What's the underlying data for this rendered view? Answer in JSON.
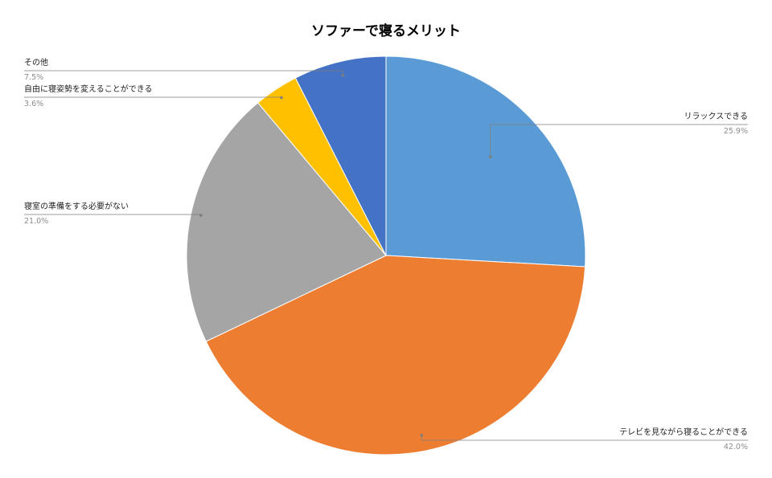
{
  "chart_data": {
    "type": "pie",
    "title": "ソファーで寝るメリット",
    "start_angle_deg": 0,
    "direction": "clockwise",
    "slices": [
      {
        "label": "リラックスできる",
        "value": 25.9,
        "value_label": "25.9%",
        "color": "#5B9BD5"
      },
      {
        "label": "テレビを見ながら寝ることができる",
        "value": 42.0,
        "value_label": "42.0%",
        "color": "#ED7D31"
      },
      {
        "label": "寝室の準備をする必要がない",
        "value": 21.0,
        "value_label": "21.0%",
        "color": "#A5A5A5"
      },
      {
        "label": "自由に寝姿勢を変えることができる",
        "value": 3.6,
        "value_label": "3.6%",
        "color": "#FFC000"
      },
      {
        "label": "その他",
        "value": 7.5,
        "value_label": "7.5%",
        "color": "#4472C4"
      }
    ],
    "legend": "none",
    "label_style": "callout lines with name and percent"
  }
}
